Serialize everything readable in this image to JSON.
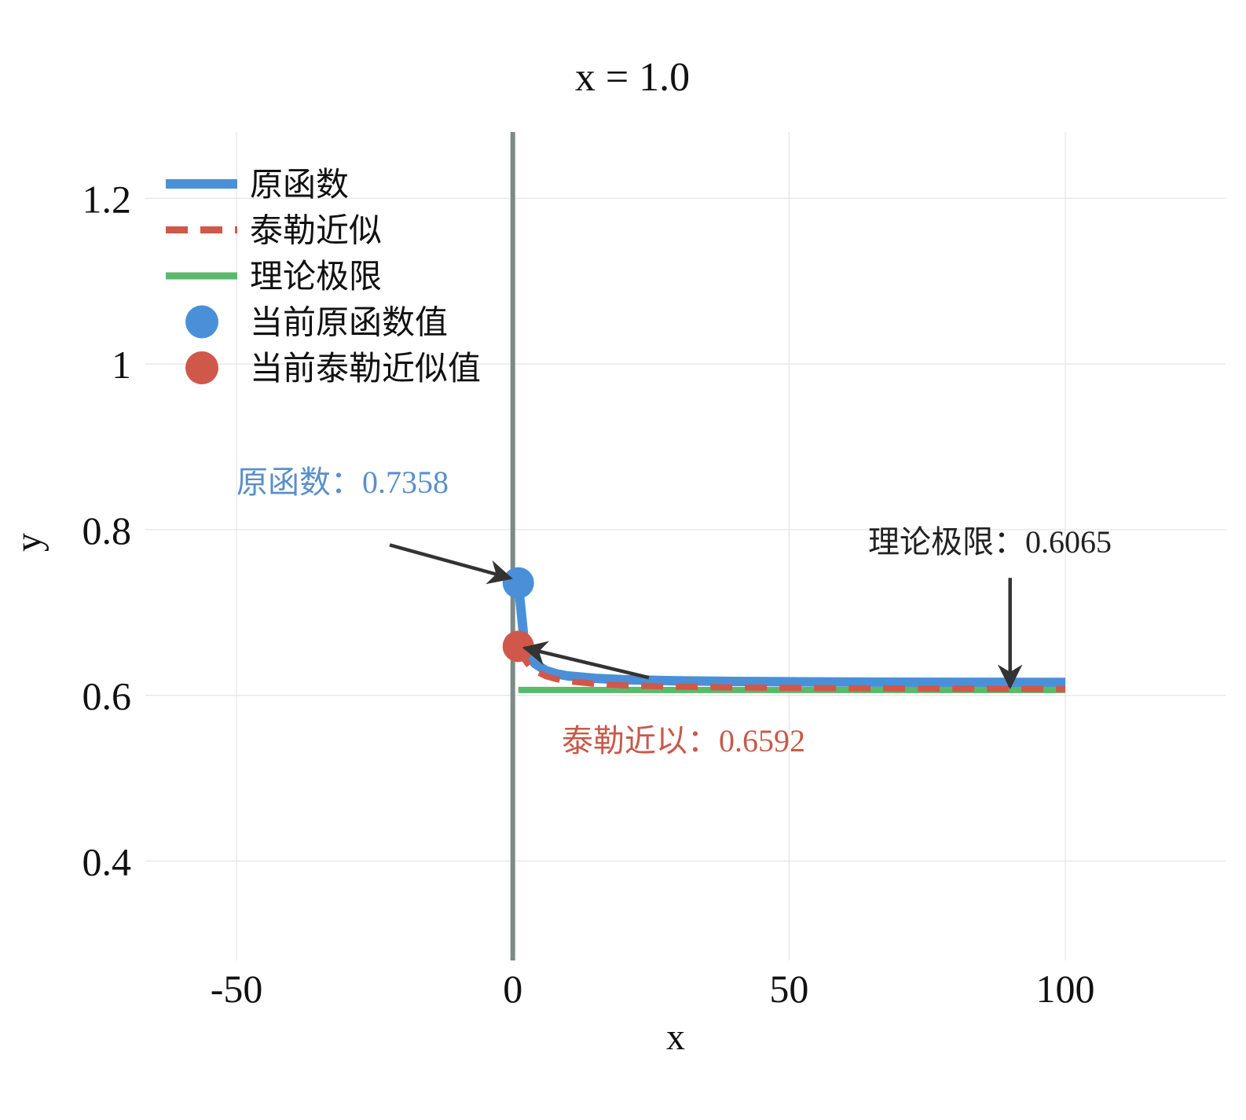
{
  "chart_data": {
    "type": "line",
    "title": "x = 1.0",
    "xlabel": "x",
    "ylabel": "y",
    "xlim": [
      -66.5,
      129
    ],
    "ylim": [
      0.28,
      1.28
    ],
    "xticks": [
      -50,
      0,
      50,
      100
    ],
    "xtick_labels": [
      "-50",
      "0",
      "50",
      "100"
    ],
    "yticks": [
      0.4,
      0.6,
      0.8,
      1.0,
      1.2
    ],
    "ytick_labels": [
      "0.4",
      "0.6",
      "0.8",
      "1",
      "1.2"
    ],
    "grid": true,
    "legend_position": "top-left",
    "vline_x": 0,
    "series": [
      {
        "name": "原函数",
        "style": "solid",
        "color": "#4a90d9",
        "x": [
          1,
          2,
          3,
          4,
          6,
          8,
          10,
          15,
          20,
          30,
          40,
          50,
          60,
          70,
          80,
          90,
          100
        ],
        "y": [
          0.7358,
          0.6694,
          0.6478,
          0.6384,
          0.6298,
          0.6258,
          0.6235,
          0.6205,
          0.619,
          0.6176,
          0.6168,
          0.6164,
          0.6161,
          0.6159,
          0.6158,
          0.6157,
          0.6156
        ]
      },
      {
        "name": "泰勒近似",
        "style": "dashed",
        "color": "#d0584a",
        "x": [
          1,
          2,
          3,
          4,
          6,
          8,
          10,
          15,
          20,
          30,
          40,
          50,
          60,
          70,
          80,
          90,
          100
        ],
        "y": [
          0.6592,
          0.6446,
          0.6357,
          0.6298,
          0.6232,
          0.6196,
          0.6172,
          0.6139,
          0.6122,
          0.6105,
          0.6096,
          0.609,
          0.6086,
          0.6083,
          0.6081,
          0.6079,
          0.6077
        ]
      },
      {
        "name": "理论极限",
        "style": "solid",
        "color": "#5cb96a",
        "x": [
          1,
          100
        ],
        "y": [
          0.6065,
          0.6065
        ]
      }
    ],
    "markers": [
      {
        "name": "当前原函数值",
        "x": 1,
        "y": 0.7358,
        "color": "#4a90d9"
      },
      {
        "name": "当前泰勒近似值",
        "x": 1,
        "y": 0.6592,
        "color": "#d0584a"
      }
    ],
    "annotations": [
      {
        "text": "原函数：0.7358",
        "color": "#5b8fc9",
        "point_x": 1,
        "point_y": 0.7358,
        "text_x": -50,
        "text_y": 0.81
      },
      {
        "text": "泰勒近以：0.6592",
        "color": "#c8594b",
        "point_x": 1,
        "point_y": 0.6592,
        "text_x": 9,
        "text_y": 0.555
      },
      {
        "text": "理论极限：0.6065",
        "color": "#222222",
        "point_x": 90,
        "point_y": 0.6065,
        "text_x": 65,
        "text_y": 0.775
      }
    ]
  }
}
